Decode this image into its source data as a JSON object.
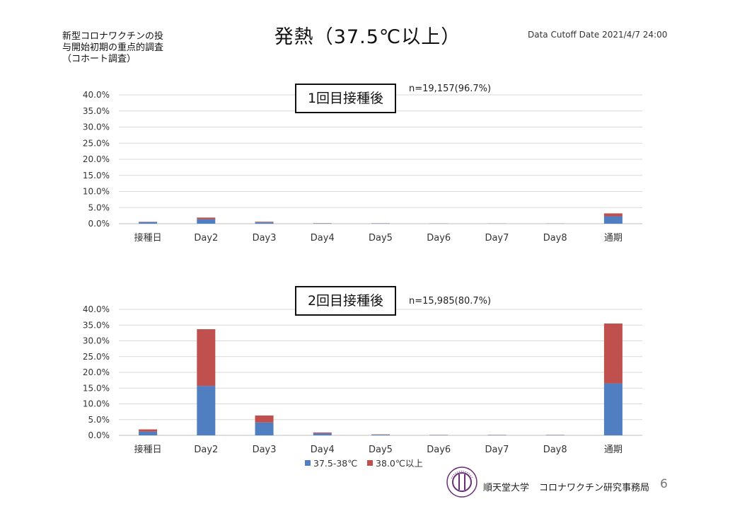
{
  "header": {
    "side_note_lines": [
      "新型コロナワクチンの投",
      "与開始初期の重点的調査",
      "（コホート調査）"
    ],
    "title": "発熱（37.5℃以上）",
    "cutoff": "Data Cutoff Date 2021/4/7 24:00"
  },
  "colors": {
    "series1": "#4F7FC1",
    "series2": "#C0504D",
    "grid": "#d9d9d9"
  },
  "chart_data": [
    {
      "type": "bar",
      "stacked": true,
      "panel_label": "1回目接種後",
      "annotation": "n=19,157(96.7%)",
      "categories": [
        "接種日",
        "Day2",
        "Day3",
        "Day4",
        "Day5",
        "Day6",
        "Day7",
        "Day8",
        "通期"
      ],
      "series": [
        {
          "name": "37.5-38℃",
          "values": [
            0.5,
            1.4,
            0.4,
            0.1,
            0.1,
            0.05,
            0.03,
            0.03,
            2.3
          ]
        },
        {
          "name": "38.0℃以上",
          "values": [
            0.1,
            0.5,
            0.2,
            0.05,
            0.03,
            0.02,
            0.02,
            0.02,
            0.9
          ]
        }
      ],
      "yticks": [
        "40.0%",
        "35.0%",
        "30.0%",
        "25.0%",
        "20.0%",
        "15.0%",
        "10.0%",
        "5.0%",
        "0.0%"
      ],
      "ylim": [
        0,
        40
      ],
      "grid": true
    },
    {
      "type": "bar",
      "stacked": true,
      "panel_label": "2回目接種後",
      "annotation": "n=15,985(80.7%)",
      "categories": [
        "接種日",
        "Day2",
        "Day3",
        "Day4",
        "Day5",
        "Day6",
        "Day7",
        "Day8",
        "通期"
      ],
      "series": [
        {
          "name": "37.5-38℃",
          "values": [
            1.2,
            15.7,
            4.1,
            0.6,
            0.2,
            0.1,
            0.1,
            0.1,
            16.5
          ]
        },
        {
          "name": "38.0℃以上",
          "values": [
            0.7,
            18.0,
            2.2,
            0.3,
            0.1,
            0.05,
            0.05,
            0.05,
            19.0
          ]
        }
      ],
      "yticks": [
        "40.0%",
        "35.0%",
        "30.0%",
        "25.0%",
        "20.0%",
        "15.0%",
        "10.0%",
        "5.0%",
        "0.0%"
      ],
      "ylim": [
        0,
        40
      ],
      "grid": true,
      "legend": {
        "position": "bottom",
        "entries": [
          "37.5-38℃",
          "38.0℃以上"
        ]
      }
    }
  ],
  "footer": {
    "university": "順天堂大学",
    "department": "コロナワクチン研究事務局",
    "page": "6",
    "logo_text": "JUNTENDO UNIVERSITY"
  }
}
